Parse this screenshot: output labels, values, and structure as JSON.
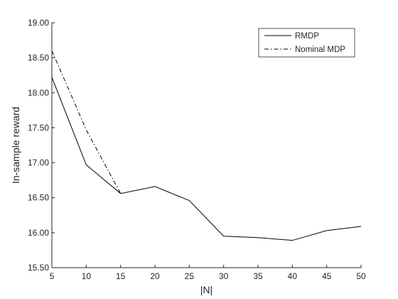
{
  "chart_data": {
    "type": "line",
    "title": "",
    "xlabel": "|N|",
    "ylabel": "In-sample reward",
    "xlim": [
      5,
      50
    ],
    "ylim": [
      15.5,
      19.0
    ],
    "x_ticks": [
      5,
      10,
      15,
      20,
      25,
      30,
      35,
      40,
      45,
      50
    ],
    "y_ticks": [
      15.5,
      16.0,
      16.5,
      17.0,
      17.5,
      18.0,
      18.5,
      19.0
    ],
    "y_tick_labels": [
      "15.50",
      "16.00",
      "16.50",
      "17.00",
      "17.50",
      "18.00",
      "18.50",
      "19.00"
    ],
    "grid": false,
    "legend_position": "top-right",
    "series": [
      {
        "name": "RMDP",
        "style": "solid",
        "color": "#000000",
        "x": [
          5,
          10,
          15,
          20,
          25,
          30,
          35,
          40,
          45,
          50
        ],
        "y": [
          18.22,
          16.97,
          16.56,
          16.66,
          16.46,
          15.95,
          15.93,
          15.89,
          16.03,
          16.09
        ]
      },
      {
        "name": "Nominal MDP",
        "style": "dashdot",
        "color": "#000000",
        "x": [
          5,
          10,
          15
        ],
        "y": [
          18.6,
          17.47,
          16.56
        ]
      }
    ]
  }
}
